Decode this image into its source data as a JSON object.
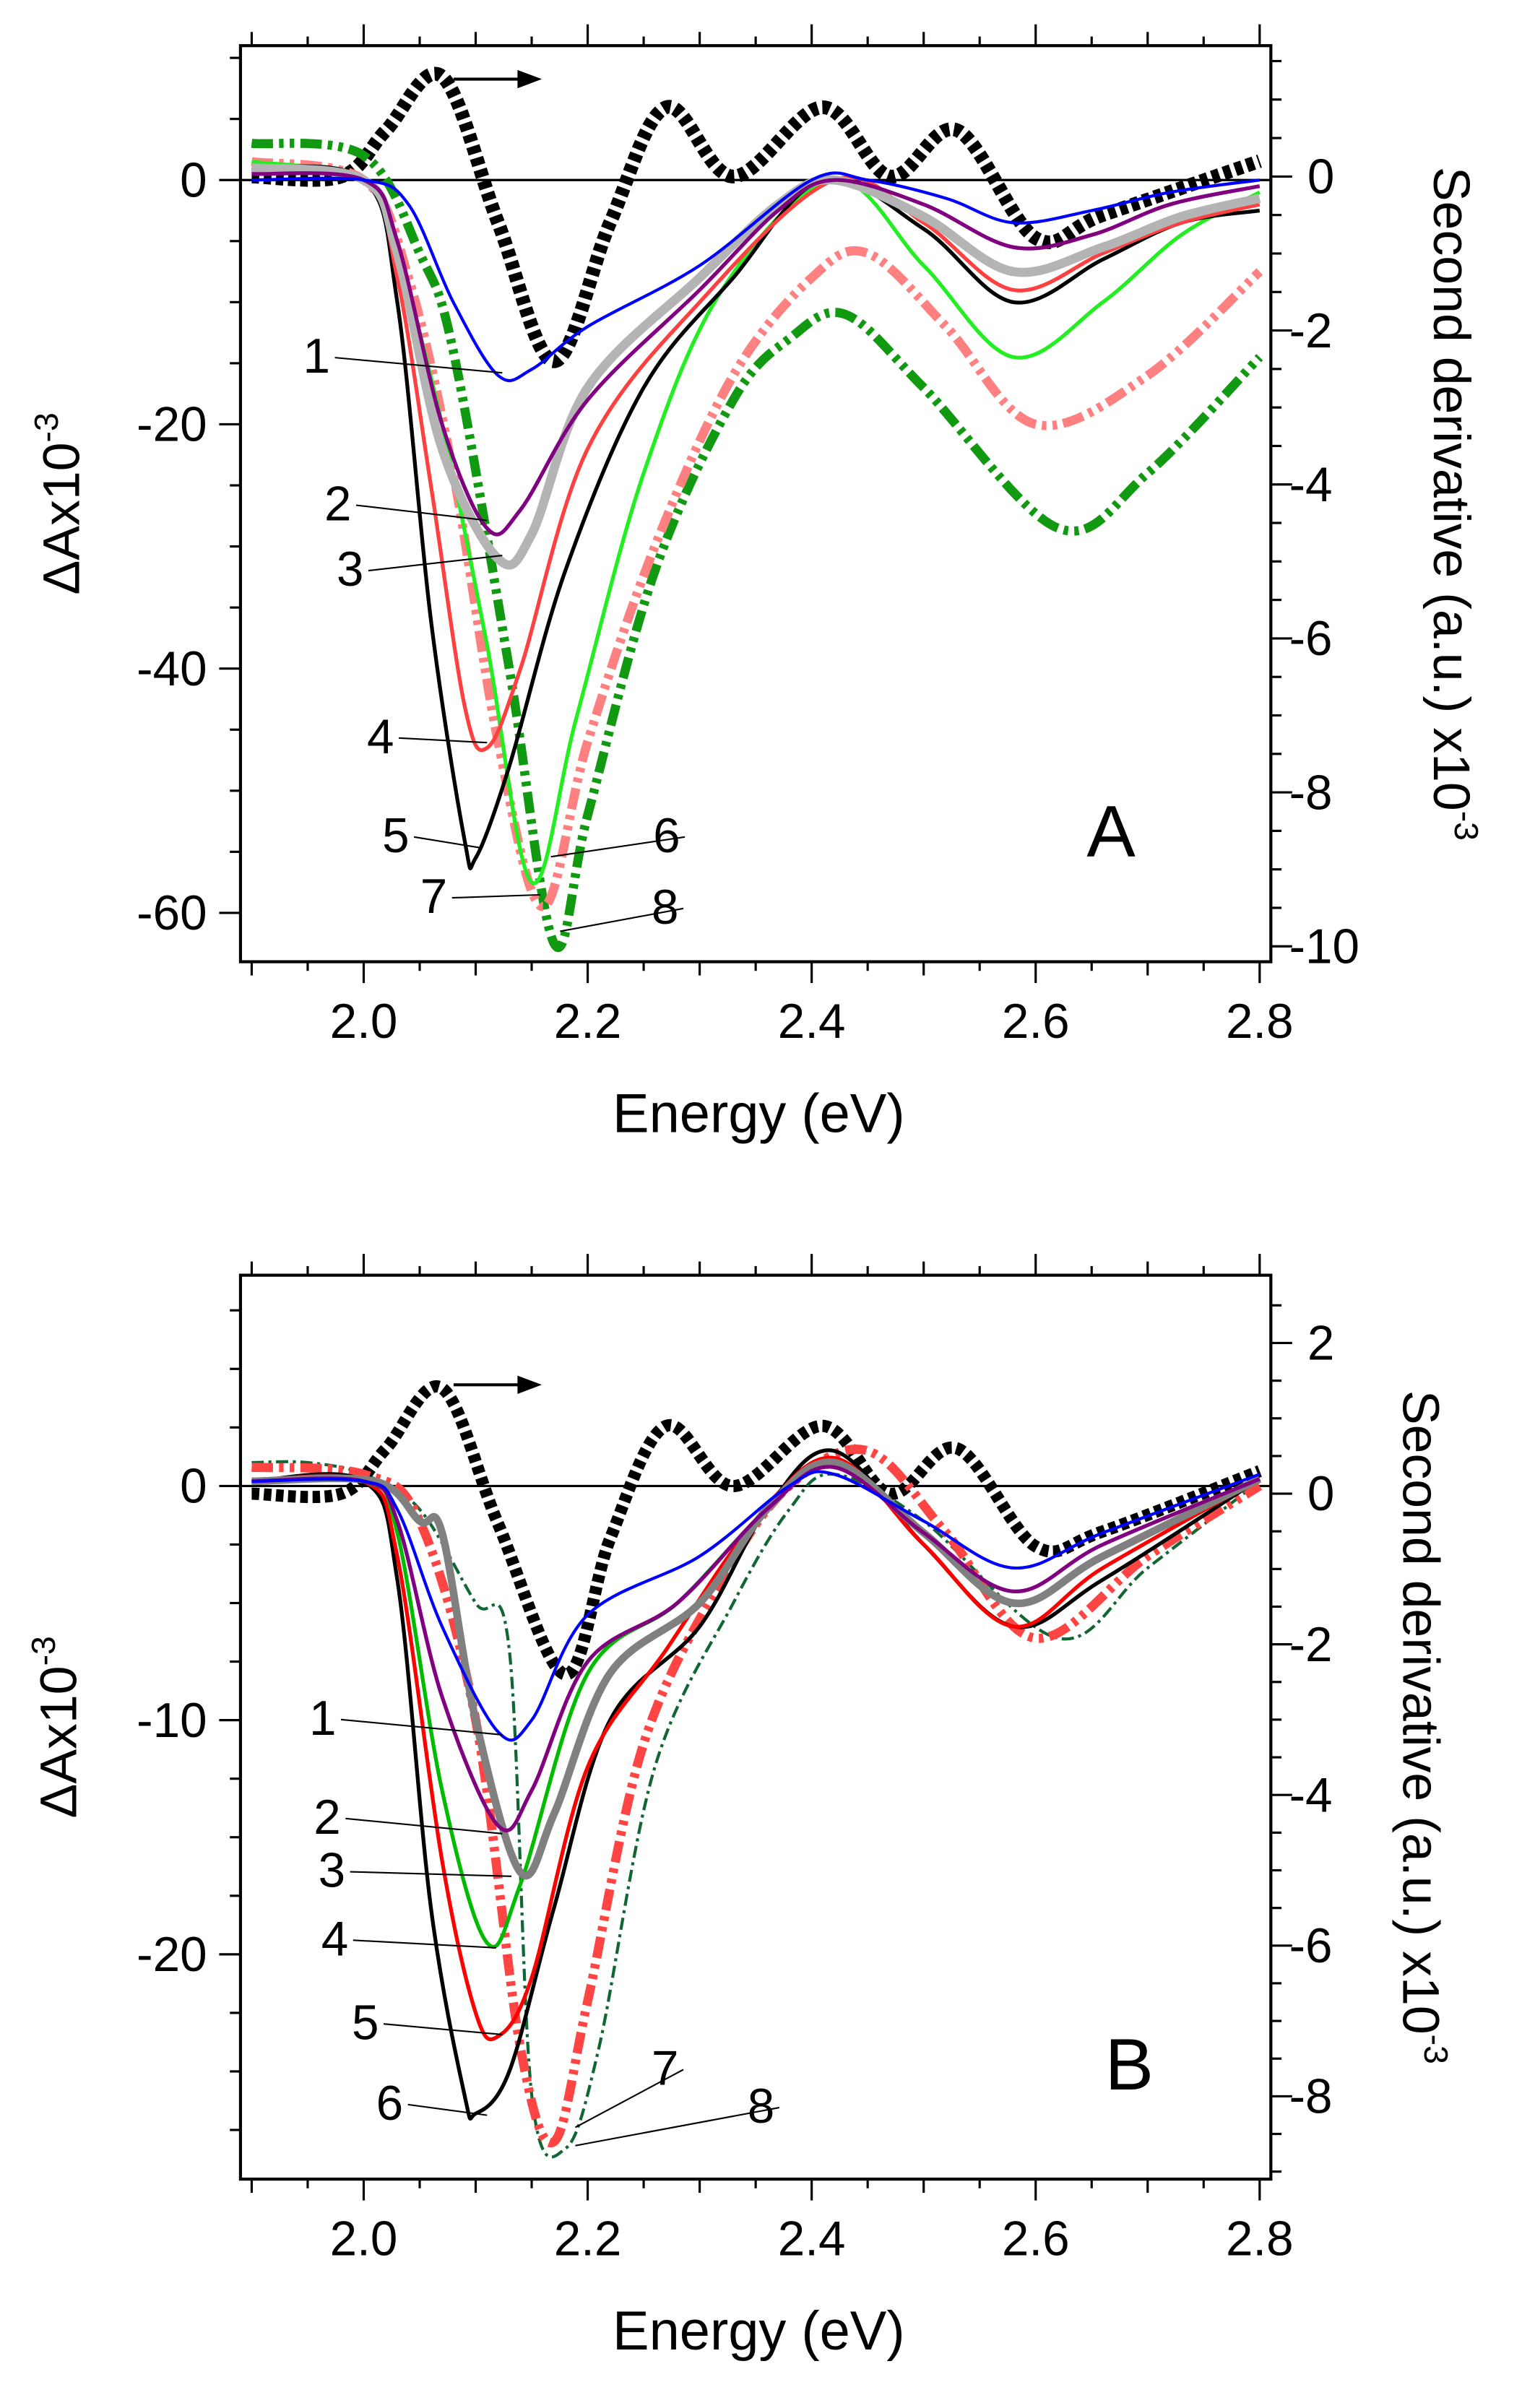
{
  "chart_data": [
    {
      "type": "line",
      "panel_label": "A",
      "xlabel": "Energy (eV)",
      "ylabel": "ΔAx10",
      "ylabel_exp": "-3",
      "y2label": "Second derivative (a.u.) x10",
      "y2label_exp": "-3",
      "xlim": [
        1.89,
        2.81
      ],
      "ylim": [
        -64,
        11
      ],
      "y2lim": [
        -10.2,
        1.7
      ],
      "xticks": [
        "2.0",
        "2.2",
        "2.4",
        "2.6",
        "2.8"
      ],
      "yticks": [
        "0",
        "-20",
        "-40",
        "-60"
      ],
      "y2ticks": [
        "0",
        "-2",
        "-4",
        "-6",
        "-8",
        "-10"
      ],
      "series": [
        {
          "name": "1",
          "color": "#0000ff",
          "style": "solid",
          "width": 2,
          "x": [
            1.9,
            2.0,
            2.04,
            2.08,
            2.12,
            2.15,
            2.2,
            2.3,
            2.4,
            2.45,
            2.52,
            2.58,
            2.65,
            2.72,
            2.8
          ],
          "y": [
            0,
            0,
            -2,
            -10,
            -16,
            -15.5,
            -12,
            -7,
            0,
            0,
            -1.5,
            -3.5,
            -2.5,
            -1,
            0
          ]
        },
        {
          "name": "2",
          "color": "#800080",
          "style": "solid",
          "width": 2.5,
          "x": [
            1.9,
            2.0,
            2.03,
            2.07,
            2.11,
            2.14,
            2.2,
            2.3,
            2.37,
            2.42,
            2.5,
            2.58,
            2.65,
            2.72,
            2.8
          ],
          "y": [
            0.5,
            0,
            -5,
            -20,
            -28.5,
            -27,
            -18,
            -9,
            -2.5,
            0,
            -2,
            -5.5,
            -4.5,
            -2,
            -0.5
          ]
        },
        {
          "name": "3",
          "color": "#b4b4b4",
          "style": "solid",
          "width": 6,
          "x": [
            1.9,
            2.0,
            2.03,
            2.07,
            2.12,
            2.15,
            2.2,
            2.3,
            2.37,
            2.42,
            2.5,
            2.58,
            2.66,
            2.73,
            2.8
          ],
          "y": [
            1,
            0,
            -6,
            -22,
            -31,
            -29,
            -17,
            -8,
            -2,
            0,
            -3,
            -7.5,
            -5.5,
            -3,
            -1.5
          ]
        },
        {
          "name": "4",
          "color": "#ff4040",
          "style": "solid",
          "width": 2.5,
          "x": [
            1.9,
            2.0,
            2.03,
            2.06,
            2.09,
            2.11,
            2.14,
            2.2,
            2.3,
            2.42,
            2.5,
            2.58,
            2.66,
            2.73,
            2.8
          ],
          "y": [
            1,
            0,
            -8,
            -25,
            -43,
            -46.5,
            -40,
            -22,
            -10,
            0,
            -3.5,
            -9,
            -6,
            -3.5,
            -2
          ]
        },
        {
          "name": "5",
          "color": "#000000",
          "style": "solid",
          "width": 2.5,
          "x": [
            1.9,
            2.0,
            2.03,
            2.06,
            2.09,
            2.1,
            2.13,
            2.18,
            2.25,
            2.33,
            2.41,
            2.5,
            2.58,
            2.66,
            2.73,
            2.8
          ],
          "y": [
            1,
            0,
            -10,
            -36,
            -54,
            -55.5,
            -48,
            -32,
            -17,
            -8,
            0,
            -4,
            -10,
            -6.5,
            -3.5,
            -2.5
          ]
        },
        {
          "name": "6",
          "color": "#22ee22",
          "style": "solid",
          "width": 2.5,
          "x": [
            1.9,
            2.0,
            2.03,
            2.07,
            2.11,
            2.15,
            2.19,
            2.25,
            2.32,
            2.42,
            2.5,
            2.58,
            2.66,
            2.73,
            2.8
          ],
          "y": [
            1.5,
            0,
            -6,
            -20,
            -38,
            -57.5,
            -44,
            -24,
            -9,
            0,
            -7,
            -14.5,
            -10,
            -4.5,
            -1
          ]
        },
        {
          "name": "7",
          "color": "#ff8080",
          "style": "dashdotdot",
          "width": 6,
          "x": [
            1.9,
            2.0,
            2.04,
            2.08,
            2.12,
            2.16,
            2.2,
            2.26,
            2.33,
            2.4,
            2.45,
            2.52,
            2.6,
            2.7,
            2.8
          ],
          "y": [
            1.5,
            0,
            -8,
            -24,
            -46,
            -59.5,
            -46,
            -30,
            -16,
            -8,
            -6,
            -12,
            -20,
            -16,
            -7.5
          ]
        },
        {
          "name": "8",
          "color": "#119911",
          "style": "dashdotdot",
          "width": 6,
          "x": [
            1.9,
            2.0,
            2.05,
            2.08,
            2.13,
            2.17,
            2.2,
            2.26,
            2.33,
            2.38,
            2.43,
            2.5,
            2.62,
            2.7,
            2.8
          ],
          "y": [
            3,
            2,
            -6,
            -14,
            -40,
            -62.5,
            -52,
            -32,
            -18,
            -13,
            -11,
            -17,
            -28.5,
            -24,
            -14.5
          ]
        },
        {
          "name": "second-derivative",
          "color": "#000000",
          "style": "dashed",
          "width": 9,
          "axis": "right",
          "x": [
            1.9,
            1.98,
            2.02,
            2.07,
            2.12,
            2.17,
            2.22,
            2.27,
            2.33,
            2.41,
            2.47,
            2.53,
            2.6,
            2.66,
            2.8
          ],
          "y": [
            0,
            0,
            0.6,
            1.3,
            -0.6,
            -2.4,
            -0.6,
            0.9,
            0,
            0.9,
            0,
            0.6,
            -0.8,
            -0.5,
            0.2
          ]
        }
      ]
    },
    {
      "type": "line",
      "panel_label": "B",
      "xlabel": "Energy (eV)",
      "ylabel": "ΔAx10",
      "ylabel_exp": "-3",
      "y2label": "Second derivative (a.u.) x10",
      "y2label_exp": "-3",
      "xlim": [
        1.89,
        2.81
      ],
      "ylim": [
        -29.6,
        9
      ],
      "y2lim": [
        -9.1,
        2.9
      ],
      "xticks": [
        "2.0",
        "2.2",
        "2.4",
        "2.6",
        "2.8"
      ],
      "yticks": [
        "0",
        "-10",
        "-20"
      ],
      "y2ticks": [
        "2",
        "0",
        "-2",
        "-4",
        "-6",
        "-8"
      ],
      "series": [
        {
          "name": "1",
          "color": "#0000ff",
          "style": "solid",
          "width": 2,
          "x": [
            1.9,
            2.0,
            2.03,
            2.07,
            2.12,
            2.15,
            2.2,
            2.3,
            2.38,
            2.42,
            2.5,
            2.58,
            2.66,
            2.8
          ],
          "y": [
            0.2,
            0.2,
            -1,
            -6,
            -10.5,
            -10,
            -5.5,
            -3,
            0,
            0.5,
            -1.5,
            -3.5,
            -2,
            0.5
          ]
        },
        {
          "name": "2",
          "color": "#800080",
          "style": "solid",
          "width": 2.5,
          "x": [
            1.9,
            2.0,
            2.03,
            2.07,
            2.12,
            2.15,
            2.2,
            2.28,
            2.36,
            2.42,
            2.5,
            2.58,
            2.66,
            2.8
          ],
          "y": [
            0.2,
            0.2,
            -1.5,
            -9,
            -14.5,
            -13,
            -7.5,
            -5,
            -1,
            0.8,
            -2,
            -4.5,
            -2.5,
            0.3
          ]
        },
        {
          "name": "3",
          "color": "#808080",
          "style": "solid",
          "width": 5,
          "x": [
            1.9,
            2.01,
            2.05,
            2.07,
            2.1,
            2.14,
            2.17,
            2.22,
            2.3,
            2.36,
            2.42,
            2.5,
            2.58,
            2.66,
            2.8
          ],
          "y": [
            0.2,
            0.2,
            -1.5,
            -2,
            -10,
            -16.5,
            -14,
            -8,
            -5,
            -1,
            1,
            -2,
            -5,
            -3,
            0.3
          ]
        },
        {
          "name": "4",
          "color": "#00bb00",
          "style": "solid",
          "width": 2.5,
          "x": [
            1.9,
            2.0,
            2.03,
            2.07,
            2.11,
            2.14,
            2.2,
            2.28,
            2.36,
            2.42,
            2.5,
            2.58,
            2.66,
            2.8
          ],
          "y": [
            0.2,
            0.2,
            -2,
            -13,
            -19.5,
            -17,
            -8,
            -5,
            -1,
            1,
            -2,
            -5,
            -3,
            0.3
          ]
        },
        {
          "name": "5",
          "color": "#ff0000",
          "style": "solid",
          "width": 2.5,
          "x": [
            1.9,
            2.0,
            2.03,
            2.07,
            2.1,
            2.12,
            2.15,
            2.2,
            2.27,
            2.35,
            2.42,
            2.5,
            2.58,
            2.66,
            2.8
          ],
          "y": [
            0.2,
            0.2,
            -3,
            -16,
            -22.5,
            -23.5,
            -21,
            -12,
            -7,
            -1.5,
            1.2,
            -2.5,
            -6,
            -3.5,
            0.3
          ]
        },
        {
          "name": "6",
          "color": "#000000",
          "style": "solid",
          "width": 2.5,
          "x": [
            1.9,
            2.0,
            2.03,
            2.06,
            2.09,
            2.1,
            2.13,
            2.17,
            2.22,
            2.3,
            2.36,
            2.42,
            2.5,
            2.58,
            2.66,
            2.8
          ],
          "y": [
            0.2,
            0.2,
            -4,
            -18,
            -26,
            -26.8,
            -25,
            -18,
            -10,
            -6,
            -1,
            1.5,
            -2.5,
            -6,
            -4,
            0.3
          ]
        },
        {
          "name": "7",
          "color": "#ff4444",
          "style": "dashdotdot",
          "width": 6,
          "x": [
            1.9,
            2.0,
            2.05,
            2.1,
            2.14,
            2.17,
            2.2,
            2.25,
            2.32,
            2.38,
            2.45,
            2.52,
            2.6,
            2.7,
            2.8
          ],
          "y": [
            0.8,
            0.5,
            -1.5,
            -10,
            -24,
            -28,
            -22,
            -11,
            -4,
            0,
            1.5,
            -2,
            -6.5,
            -3,
            0
          ]
        },
        {
          "name": "8",
          "color": "#116633",
          "style": "dashdot",
          "width": 2,
          "x": [
            1.9,
            1.95,
            2.0,
            2.05,
            2.1,
            2.13,
            2.15,
            2.18,
            2.21,
            2.26,
            2.33,
            2.38,
            2.42,
            2.5,
            2.62,
            2.7,
            2.8
          ],
          "y": [
            1,
            1,
            0.5,
            -1,
            -5,
            -7,
            -26,
            -28.3,
            -24,
            -12,
            -5,
            -1,
            0.5,
            -1.5,
            -6.5,
            -3.5,
            0.2
          ]
        },
        {
          "name": "second-derivative",
          "color": "#000000",
          "style": "dashed",
          "width": 8,
          "axis": "right",
          "x": [
            1.9,
            1.98,
            2.02,
            2.07,
            2.12,
            2.18,
            2.22,
            2.27,
            2.33,
            2.41,
            2.47,
            2.53,
            2.6,
            2.66,
            2.8
          ],
          "y": [
            0,
            0,
            0.6,
            1.4,
            -0.4,
            -2.4,
            -0.6,
            0.9,
            0.1,
            0.9,
            0,
            0.6,
            -0.7,
            -0.5,
            0.3
          ]
        }
      ]
    }
  ]
}
